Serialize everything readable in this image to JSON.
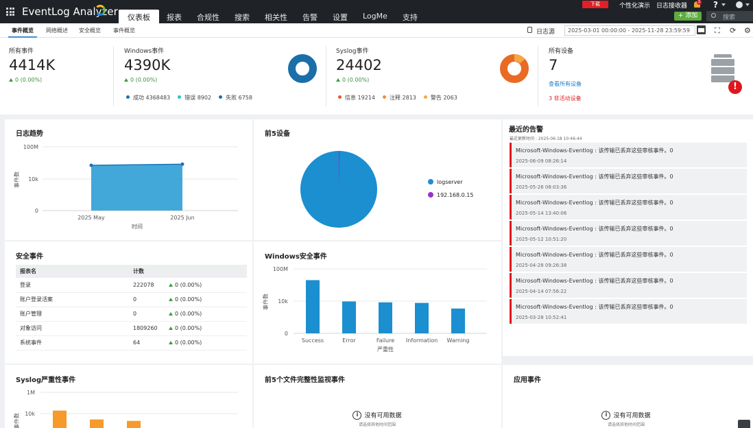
{
  "app": {
    "logo": "EventLog Analyzer"
  },
  "nav": [
    "仪表板",
    "报表",
    "合规性",
    "搜索",
    "相关性",
    "告警",
    "设置",
    "LogMe",
    "支持"
  ],
  "topbar": {
    "download": "下载",
    "personalize": "个性化演示",
    "log_receiver": "日志接收器",
    "bell_count": "3",
    "help": "?",
    "add": "+ 添加",
    "search_placeholder": "搜索"
  },
  "subtabs": [
    "事件概览",
    "网络概述",
    "安全概览",
    "事件概览"
  ],
  "toolbar": {
    "log_source": "日志源",
    "date_range": "2025-03-01 00:00:00 - 2025-11-28 23:59:59"
  },
  "summary": {
    "all_events": {
      "title": "所有事件",
      "value": "4414K",
      "delta": "0 (0.00%)"
    },
    "windows": {
      "title": "Windows事件",
      "value": "4390K",
      "delta": "0 (0.00%)",
      "legend": [
        {
          "label": "成功 4368483",
          "color": "#1b6fa8"
        },
        {
          "label": "错误 8902",
          "color": "#26c3c8"
        },
        {
          "label": "失败 6758",
          "color": "#1b6fa8"
        }
      ]
    },
    "syslog": {
      "title": "Syslog事件",
      "value": "24402",
      "delta": "0 (0.00%)",
      "legend": [
        {
          "label": "信息 19214",
          "color": "#e4572e"
        },
        {
          "label": "注释 2813",
          "color": "#f28d35"
        },
        {
          "label": "警告 2063",
          "color": "#f5a745"
        }
      ]
    },
    "devices": {
      "title": "所有设备",
      "value": "7",
      "view_all": "查看所有设备",
      "inactive": "3 非活动设备"
    }
  },
  "log_trend": {
    "title": "日志趋势",
    "ylabel": "事件数",
    "xlabel": "时间"
  },
  "top_devices": {
    "title": "前5设备"
  },
  "security_events": {
    "title": "安全事件",
    "headers": [
      "报表名",
      "计数"
    ],
    "rows": [
      {
        "name": "登录",
        "count": "222078",
        "delta": "0 (0.00%)"
      },
      {
        "name": "账户登录活案",
        "count": "0",
        "delta": "0 (0.00%)"
      },
      {
        "name": "账户管理",
        "count": "0",
        "delta": "0 (0.00%)"
      },
      {
        "name": "对象访问",
        "count": "1809260",
        "delta": "0 (0.00%)"
      },
      {
        "name": "系统事件",
        "count": "64",
        "delta": "0 (0.00%)"
      }
    ]
  },
  "win_security": {
    "title": "Windows安全事件",
    "ylabel": "事件数",
    "xlabel": "严重性"
  },
  "recent_alerts": {
    "title": "最近的告警",
    "updated": "最近更新时间 : 2025-06-18 10:46:44",
    "items": [
      {
        "msg": "Microsoft-Windows-Eventlog : 该传输已丢弃这些审核事件。0",
        "time": "2025-06-09 08:26:14"
      },
      {
        "msg": "Microsoft-Windows-Eventlog : 该传输已丢弃这些审核事件。0",
        "time": "2025-05-26 08:03:36"
      },
      {
        "msg": "Microsoft-Windows-Eventlog : 该传输已丢弃这些审核事件。0",
        "time": "2025-05-14 13:40:06"
      },
      {
        "msg": "Microsoft-Windows-Eventlog : 该传输已丢弃这些审核事件。0",
        "time": "2025-05-12 10:51:20"
      },
      {
        "msg": "Microsoft-Windows-Eventlog : 该传输已丢弃这些审核事件。0",
        "time": "2025-04-28 09:26:38"
      },
      {
        "msg": "Microsoft-Windows-Eventlog : 该传输已丢弃这些审核事件。0",
        "time": "2025-04-14 07:56:22"
      },
      {
        "msg": "Microsoft-Windows-Eventlog : 该传输已丢弃这些审核事件。0",
        "time": "2025-03-28 10:52:41"
      }
    ]
  },
  "syslog_severity": {
    "title": "Syslog严重性事件",
    "ylabel": "事件数"
  },
  "fim": {
    "title": "前5个文件完整性监视事件",
    "nodata": "没有可用数据",
    "hint": "请选择其他时间范围"
  },
  "app_events": {
    "title": "应用事件",
    "nodata": "没有可用数据",
    "hint": "请选择其他时间范围"
  },
  "chart_data": [
    {
      "type": "area",
      "name": "log_trend",
      "x": [
        "2025 May",
        "2025 Jun"
      ],
      "yticks": [
        "100M",
        "10k",
        "0"
      ],
      "values": [
        500000,
        700000
      ],
      "yscale": "log",
      "color": "#2e9fd6"
    },
    {
      "type": "pie",
      "name": "top_devices",
      "labels": [
        "logserver",
        "192.168.0.15"
      ],
      "values": [
        99.6,
        0.4
      ],
      "colors": [
        "#1b8fcf",
        "#9b2fd0"
      ]
    },
    {
      "type": "bar",
      "name": "win_security",
      "categories": [
        "Success",
        "Error",
        "Failure",
        "Information",
        "Warning"
      ],
      "yticks": [
        "100M",
        "10k",
        "0"
      ],
      "values": [
        4000000,
        9000,
        7000,
        6000,
        1200
      ],
      "yscale": "log",
      "color": "#1b8fcf"
    },
    {
      "type": "bar",
      "name": "syslog_severity",
      "categories": [
        "",
        "",
        ""
      ],
      "yticks": [
        "1M",
        "10k"
      ],
      "values": [
        19214,
        2813,
        2063
      ],
      "yscale": "log",
      "color": "#f59a2b"
    }
  ]
}
